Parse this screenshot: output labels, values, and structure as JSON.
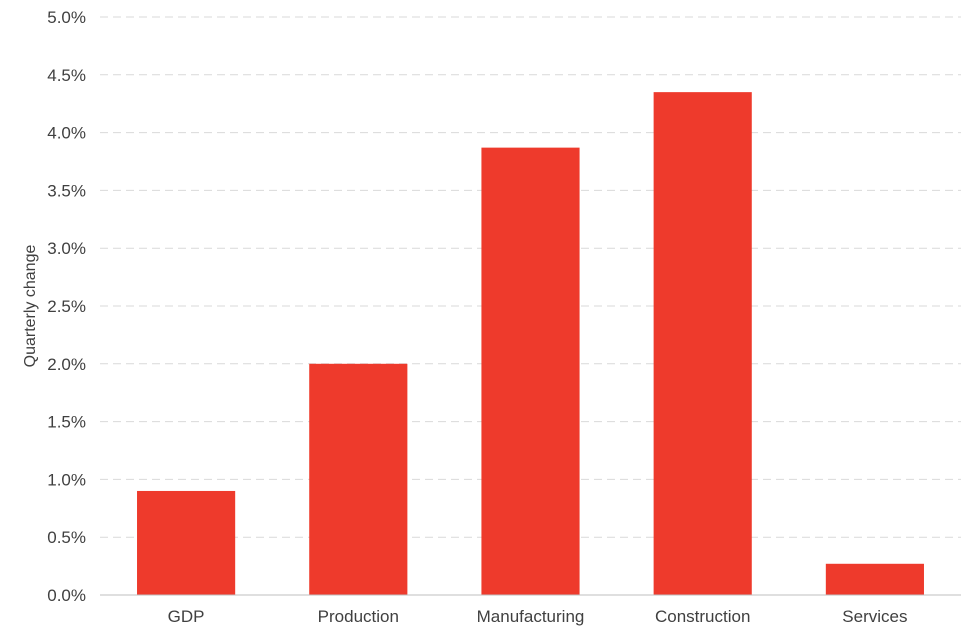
{
  "chart_data": {
    "type": "bar",
    "title": "",
    "xlabel": "",
    "ylabel": "Quarterly change",
    "categories": [
      "GDP",
      "Production",
      "Manufacturing",
      "Construction",
      "Services"
    ],
    "values": [
      0.9,
      2.0,
      3.87,
      4.35,
      0.27
    ],
    "ylim": [
      0,
      5
    ],
    "yticks": [
      "0.0%",
      "0.5%",
      "1.0%",
      "1.5%",
      "2.0%",
      "2.5%",
      "3.0%",
      "3.5%",
      "4.0%",
      "4.5%",
      "5.0%"
    ],
    "bar_color": "#ee3a2c",
    "grid": true,
    "legend": "none"
  }
}
